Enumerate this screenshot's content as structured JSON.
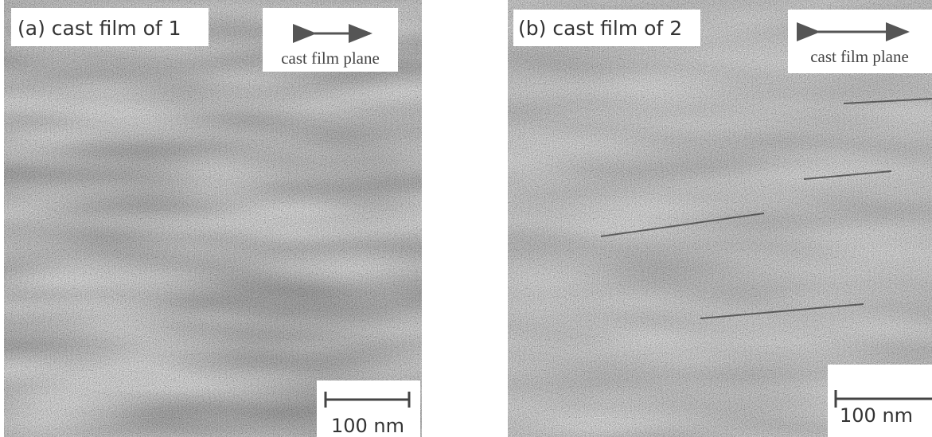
{
  "panels": [
    {
      "label": "(a) cast film of 1",
      "orientation_label": "cast film plane",
      "scale_label": "100 nm"
    },
    {
      "label": "(b) cast film of 2",
      "orientation_label": "cast film plane",
      "scale_label": "100 nm"
    }
  ]
}
